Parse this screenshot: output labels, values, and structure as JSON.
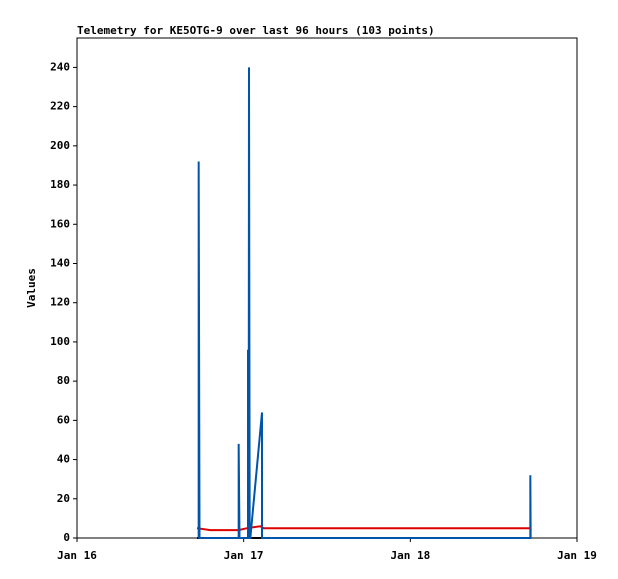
{
  "chart_data": {
    "type": "line",
    "title": "Telemetry for KE5OTG-9 over last 96 hours (103 points)",
    "y_label": "Values",
    "xlim": [
      16,
      19
    ],
    "xticks": [
      {
        "value": 16,
        "label": "Jan 16"
      },
      {
        "value": 17,
        "label": "Jan 17"
      },
      {
        "value": 18,
        "label": "Jan 18"
      },
      {
        "value": 19,
        "label": "Jan 19"
      }
    ],
    "ylim": [
      0,
      255
    ],
    "yticks": [
      0,
      20,
      40,
      60,
      80,
      100,
      120,
      140,
      160,
      180,
      200,
      220,
      240
    ],
    "series": [
      {
        "color": "#000000",
        "x": [
          16.72,
          18.72
        ],
        "values": [
          0,
          0
        ]
      },
      {
        "color": "#dd0000",
        "x": [
          16.72,
          16.8,
          16.97,
          17.02,
          17.1,
          17.12,
          18.72
        ],
        "values": [
          5,
          4,
          4,
          5,
          6,
          5,
          5
        ]
      },
      {
        "color": "#0055aa",
        "x": [
          16.73,
          16.73,
          16.735,
          16.97,
          16.97,
          16.975,
          17.026,
          17.026,
          17.03,
          17.032,
          17.036,
          17.04,
          17.11,
          17.11,
          18.72,
          18.72,
          18.722
        ],
        "values": [
          0,
          192,
          0,
          0,
          48,
          0,
          0,
          96,
          0,
          240,
          0,
          0,
          64,
          0,
          0,
          32,
          0
        ]
      }
    ]
  }
}
